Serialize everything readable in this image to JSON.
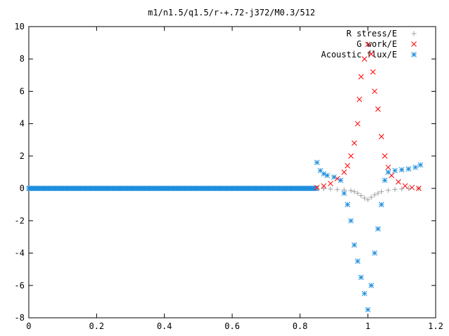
{
  "chart_data": {
    "type": "scatter",
    "title": "m1/n1.5/q1.5/r-+.72-j372/M0.3/512",
    "xlabel": "",
    "ylabel": "",
    "xlim": [
      0,
      1.2
    ],
    "ylim": [
      -8,
      10
    ],
    "x_ticks": [
      "0",
      "0.2",
      "0.4",
      "0.6",
      "0.8",
      "1",
      "1.2"
    ],
    "y_ticks": [
      "-8",
      "-6",
      "-4",
      "-2",
      "0",
      "2",
      "4",
      "6",
      "8",
      "10"
    ],
    "grid": false,
    "legend_position": "top-right",
    "series": [
      {
        "name": "R stress/E",
        "marker": "+",
        "color": "#a0a0a0",
        "points": [
          [
            0.85,
            0.02
          ],
          [
            0.87,
            -0.02
          ],
          [
            0.89,
            -0.04
          ],
          [
            0.91,
            -0.07
          ],
          [
            0.93,
            -0.1
          ],
          [
            0.95,
            -0.14
          ],
          [
            0.96,
            -0.2
          ],
          [
            0.97,
            -0.3
          ],
          [
            0.98,
            -0.45
          ],
          [
            0.99,
            -0.6
          ],
          [
            1.0,
            -0.7
          ],
          [
            1.01,
            -0.55
          ],
          [
            1.02,
            -0.4
          ],
          [
            1.03,
            -0.3
          ],
          [
            1.04,
            -0.2
          ],
          [
            1.06,
            -0.12
          ],
          [
            1.08,
            -0.06
          ],
          [
            1.1,
            -0.03
          ],
          [
            1.12,
            -0.01
          ],
          [
            1.15,
            0.0
          ]
        ]
      },
      {
        "name": "G work/E",
        "marker": "x",
        "color": "#ff0000",
        "points": [
          [
            0.85,
            0.05
          ],
          [
            0.87,
            0.15
          ],
          [
            0.89,
            0.3
          ],
          [
            0.91,
            0.6
          ],
          [
            0.93,
            1.0
          ],
          [
            0.94,
            1.4
          ],
          [
            0.95,
            2.0
          ],
          [
            0.96,
            2.8
          ],
          [
            0.97,
            4.0
          ],
          [
            0.975,
            5.5
          ],
          [
            0.98,
            6.9
          ],
          [
            0.99,
            8.0
          ],
          [
            1.0,
            8.9
          ],
          [
            1.01,
            8.3
          ],
          [
            1.015,
            7.2
          ],
          [
            1.02,
            6.0
          ],
          [
            1.03,
            4.9
          ],
          [
            1.04,
            3.2
          ],
          [
            1.05,
            2.0
          ],
          [
            1.06,
            1.3
          ],
          [
            1.07,
            0.8
          ],
          [
            1.09,
            0.4
          ],
          [
            1.11,
            0.15
          ],
          [
            1.13,
            0.05
          ],
          [
            1.15,
            0.0
          ]
        ]
      },
      {
        "name": "Acoustic flux/E",
        "marker": "*",
        "color": "#1f8fde",
        "points": [
          [
            0.85,
            1.6
          ],
          [
            0.86,
            1.1
          ],
          [
            0.87,
            0.9
          ],
          [
            0.88,
            0.8
          ],
          [
            0.9,
            0.7
          ],
          [
            0.92,
            0.5
          ],
          [
            0.93,
            -0.3
          ],
          [
            0.94,
            -1.0
          ],
          [
            0.95,
            -2.0
          ],
          [
            0.96,
            -3.5
          ],
          [
            0.97,
            -4.5
          ],
          [
            0.98,
            -5.5
          ],
          [
            0.99,
            -6.5
          ],
          [
            1.0,
            -7.5
          ],
          [
            1.01,
            -6.0
          ],
          [
            1.02,
            -4.0
          ],
          [
            1.03,
            -2.5
          ],
          [
            1.04,
            -1.0
          ],
          [
            1.05,
            0.5
          ],
          [
            1.06,
            1.0
          ],
          [
            1.08,
            1.1
          ],
          [
            1.1,
            1.15
          ],
          [
            1.12,
            1.2
          ],
          [
            1.14,
            1.3
          ],
          [
            1.155,
            1.45
          ]
        ]
      }
    ]
  }
}
